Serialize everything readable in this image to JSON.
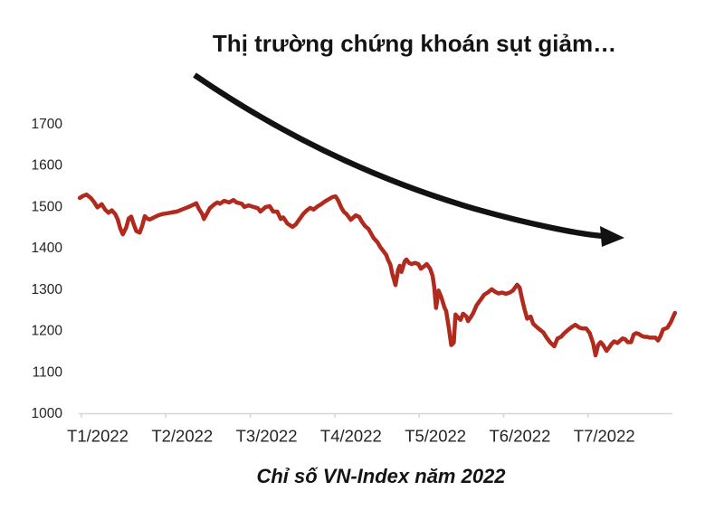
{
  "chart": {
    "title": "Thị trường chứng khoán sụt giảm…",
    "caption": "Chỉ số VN-Index năm 2022"
  },
  "colors": {
    "series_red": "#b02a1e",
    "arrow_black": "#121212",
    "axis_gray": "#d6d6d6",
    "text_dark": "#242424"
  },
  "chart_data": {
    "type": "line",
    "title": "Thị trường chứng khoán sụt giảm…",
    "caption": "Chỉ số VN-Index năm 2022",
    "grid": false,
    "legend": false,
    "x_axis": {
      "tick_labels": [
        "T1/2022",
        "T2/2022",
        "T3/2022",
        "T4/2022",
        "T5/2022",
        "T6/2022",
        "T7/2022"
      ]
    },
    "y_axis": {
      "min": 1000,
      "max": 1700,
      "tick_step": 100,
      "tick_labels": [
        1700,
        1600,
        1500,
        1400,
        1300,
        1200,
        1100,
        1000
      ]
    },
    "annotations": [
      {
        "type": "arrow",
        "shape": "curved",
        "direction": "down-right",
        "color": "#121212",
        "meaning": "downtrend emphasis over the price line"
      }
    ],
    "series": [
      {
        "name": "VN-Index",
        "color": "#b02a1e",
        "x_unit": "fractional month (1.0 = start of T1/2022, 8.0 = chart end)",
        "points": [
          [
            0.98,
            1522
          ],
          [
            1.02,
            1527
          ],
          [
            1.06,
            1530
          ],
          [
            1.11,
            1522
          ],
          [
            1.15,
            1512
          ],
          [
            1.19,
            1499
          ],
          [
            1.24,
            1507
          ],
          [
            1.28,
            1494
          ],
          [
            1.32,
            1486
          ],
          [
            1.36,
            1492
          ],
          [
            1.4,
            1483
          ],
          [
            1.43,
            1470
          ],
          [
            1.46,
            1448
          ],
          [
            1.49,
            1434
          ],
          [
            1.53,
            1450
          ],
          [
            1.56,
            1472
          ],
          [
            1.59,
            1477
          ],
          [
            1.62,
            1458
          ],
          [
            1.65,
            1442
          ],
          [
            1.69,
            1438
          ],
          [
            1.72,
            1455
          ],
          [
            1.75,
            1478
          ],
          [
            1.78,
            1472
          ],
          [
            1.81,
            1470
          ],
          [
            1.86,
            1475
          ],
          [
            1.91,
            1480
          ],
          [
            1.96,
            1483
          ],
          [
            2.02,
            1485
          ],
          [
            2.07,
            1487
          ],
          [
            2.13,
            1489
          ],
          [
            2.18,
            1493
          ],
          [
            2.23,
            1497
          ],
          [
            2.29,
            1502
          ],
          [
            2.33,
            1506
          ],
          [
            2.36,
            1509
          ],
          [
            2.39,
            1496
          ],
          [
            2.43,
            1483
          ],
          [
            2.45,
            1471
          ],
          [
            2.48,
            1482
          ],
          [
            2.52,
            1497
          ],
          [
            2.57,
            1506
          ],
          [
            2.61,
            1511
          ],
          [
            2.64,
            1508
          ],
          [
            2.69,
            1515
          ],
          [
            2.75,
            1511
          ],
          [
            2.8,
            1517
          ],
          [
            2.84,
            1511
          ],
          [
            2.9,
            1508
          ],
          [
            2.93,
            1500
          ],
          [
            2.98,
            1504
          ],
          [
            3.04,
            1500
          ],
          [
            3.09,
            1497
          ],
          [
            3.12,
            1489
          ],
          [
            3.18,
            1500
          ],
          [
            3.23,
            1502
          ],
          [
            3.27,
            1489
          ],
          [
            3.32,
            1489
          ],
          [
            3.36,
            1471
          ],
          [
            3.39,
            1475
          ],
          [
            3.44,
            1460
          ],
          [
            3.5,
            1452
          ],
          [
            3.54,
            1458
          ],
          [
            3.58,
            1470
          ],
          [
            3.63,
            1484
          ],
          [
            3.67,
            1492
          ],
          [
            3.71,
            1498
          ],
          [
            3.75,
            1494
          ],
          [
            3.8,
            1502
          ],
          [
            3.84,
            1507
          ],
          [
            3.88,
            1513
          ],
          [
            3.93,
            1519
          ],
          [
            3.97,
            1524
          ],
          [
            4.01,
            1526
          ],
          [
            4.04,
            1516
          ],
          [
            4.08,
            1498
          ],
          [
            4.11,
            1488
          ],
          [
            4.14,
            1483
          ],
          [
            4.19,
            1469
          ],
          [
            4.25,
            1480
          ],
          [
            4.29,
            1476
          ],
          [
            4.32,
            1465
          ],
          [
            4.36,
            1454
          ],
          [
            4.4,
            1447
          ],
          [
            4.43,
            1436
          ],
          [
            4.46,
            1425
          ],
          [
            4.51,
            1414
          ],
          [
            4.54,
            1403
          ],
          [
            4.57,
            1395
          ],
          [
            4.61,
            1384
          ],
          [
            4.63,
            1373
          ],
          [
            4.66,
            1360
          ],
          [
            4.68,
            1340
          ],
          [
            4.72,
            1311
          ],
          [
            4.75,
            1347
          ],
          [
            4.77,
            1358
          ],
          [
            4.79,
            1343
          ],
          [
            4.83,
            1369
          ],
          [
            4.85,
            1373
          ],
          [
            4.88,
            1365
          ],
          [
            4.91,
            1362
          ],
          [
            4.95,
            1365
          ],
          [
            4.99,
            1362
          ],
          [
            5.02,
            1351
          ],
          [
            5.05,
            1355
          ],
          [
            5.09,
            1362
          ],
          [
            5.13,
            1351
          ],
          [
            5.16,
            1333
          ],
          [
            5.18,
            1305
          ],
          [
            5.2,
            1256
          ],
          [
            5.23,
            1298
          ],
          [
            5.26,
            1283
          ],
          [
            5.28,
            1270
          ],
          [
            5.3,
            1257
          ],
          [
            5.32,
            1248
          ],
          [
            5.35,
            1210
          ],
          [
            5.38,
            1166
          ],
          [
            5.41,
            1172
          ],
          [
            5.43,
            1240
          ],
          [
            5.46,
            1233
          ],
          [
            5.49,
            1227
          ],
          [
            5.52,
            1242
          ],
          [
            5.56,
            1235
          ],
          [
            5.58,
            1224
          ],
          [
            5.61,
            1233
          ],
          [
            5.64,
            1243
          ],
          [
            5.68,
            1262
          ],
          [
            5.73,
            1276
          ],
          [
            5.77,
            1288
          ],
          [
            5.81,
            1293
          ],
          [
            5.86,
            1301
          ],
          [
            5.9,
            1295
          ],
          [
            5.94,
            1291
          ],
          [
            5.98,
            1293
          ],
          [
            6.03,
            1290
          ],
          [
            6.07,
            1293
          ],
          [
            6.11,
            1298
          ],
          [
            6.16,
            1312
          ],
          [
            6.19,
            1305
          ],
          [
            6.22,
            1276
          ],
          [
            6.25,
            1252
          ],
          [
            6.28,
            1230
          ],
          [
            6.32,
            1235
          ],
          [
            6.35,
            1218
          ],
          [
            6.38,
            1212
          ],
          [
            6.42,
            1205
          ],
          [
            6.47,
            1197
          ],
          [
            6.51,
            1184
          ],
          [
            6.55,
            1173
          ],
          [
            6.6,
            1163
          ],
          [
            6.64,
            1182
          ],
          [
            6.68,
            1186
          ],
          [
            6.72,
            1195
          ],
          [
            6.77,
            1204
          ],
          [
            6.81,
            1210
          ],
          [
            6.85,
            1215
          ],
          [
            6.9,
            1208
          ],
          [
            6.94,
            1206
          ],
          [
            6.98,
            1206
          ],
          [
            7.02,
            1195
          ],
          [
            7.06,
            1171
          ],
          [
            7.09,
            1141
          ],
          [
            7.12,
            1166
          ],
          [
            7.15,
            1173
          ],
          [
            7.18,
            1166
          ],
          [
            7.22,
            1152
          ],
          [
            7.25,
            1160
          ],
          [
            7.28,
            1169
          ],
          [
            7.31,
            1175
          ],
          [
            7.35,
            1171
          ],
          [
            7.38,
            1177
          ],
          [
            7.41,
            1182
          ],
          [
            7.44,
            1180
          ],
          [
            7.47,
            1173
          ],
          [
            7.51,
            1173
          ],
          [
            7.54,
            1191
          ],
          [
            7.57,
            1195
          ],
          [
            7.6,
            1193
          ],
          [
            7.64,
            1188
          ],
          [
            7.67,
            1186
          ],
          [
            7.7,
            1186
          ],
          [
            7.73,
            1184
          ],
          [
            7.76,
            1184
          ],
          [
            7.8,
            1184
          ],
          [
            7.83,
            1177
          ],
          [
            7.86,
            1188
          ],
          [
            7.89,
            1204
          ],
          [
            7.94,
            1208
          ],
          [
            7.98,
            1221
          ],
          [
            8.01,
            1235
          ],
          [
            8.03,
            1244
          ]
        ]
      }
    ]
  }
}
